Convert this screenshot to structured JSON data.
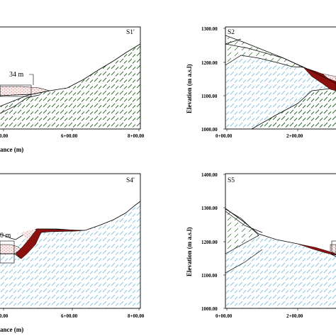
{
  "panels": {
    "p1": {
      "label": "S1'",
      "x_ticks": [
        "0+00.00",
        "6+00.00",
        "8+00.00"
      ],
      "x_title": "ance (m)",
      "annotation": "34 m"
    },
    "p2": {
      "label": "S2",
      "y_title": "Elevation (m a.s.l)",
      "y_ticks": [
        "1300.00",
        "1200.00",
        "1100.00",
        "1000.00"
      ],
      "x_ticks": [
        "0+00.00",
        "2+00.00"
      ]
    },
    "p3": {
      "label": "S4'",
      "x_ticks": [
        "0+00.00",
        "6+00.00",
        "8+00.00"
      ],
      "x_title": "ance (m)",
      "annotation": "0 m"
    },
    "p4": {
      "label": "S5",
      "y_title": "Elevation (m a.s.l)",
      "y_ticks": [
        "1400.00",
        "1300.00",
        "1200.00",
        "1100.00",
        "1000.00"
      ],
      "x_ticks": [
        "0+00.00",
        "2+00.00"
      ]
    }
  },
  "colors": {
    "bedrock_hatch": "#2f6b2a",
    "sediment_hatch": "#88c4e0",
    "landslide_fill": "#8b1010",
    "debris_dots": "#c07070",
    "border": "#000000"
  }
}
